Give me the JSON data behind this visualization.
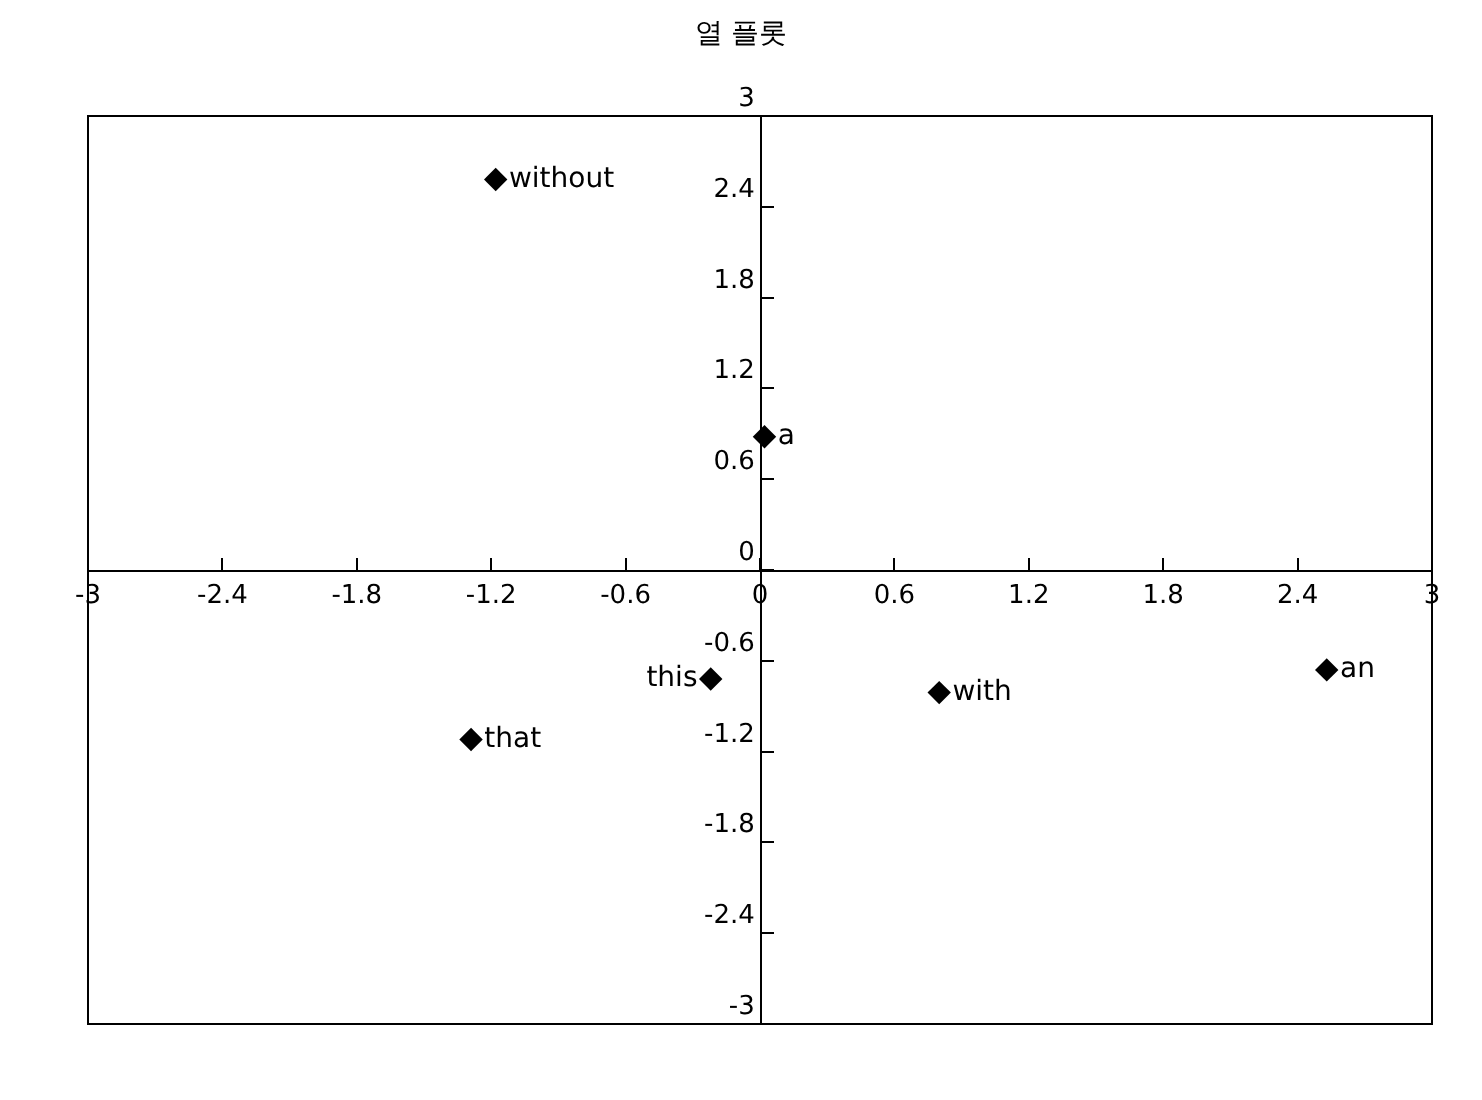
{
  "chart_data": {
    "type": "scatter",
    "title": "열 플롯",
    "x": [
      -1.18,
      0.02,
      -0.22,
      0.8,
      2.53,
      -1.29
    ],
    "values": [
      2.58,
      0.88,
      -0.72,
      -0.81,
      -0.66,
      -1.12
    ],
    "value_labels": [
      "without",
      "a",
      "this",
      "with",
      "an",
      "that"
    ],
    "color": "#000000",
    "marker": "diamond",
    "xlim": [
      -3,
      3
    ],
    "ylim": [
      -3,
      3
    ],
    "xticks": [
      -3,
      -2.4,
      -1.8,
      -1.2,
      -0.6,
      0,
      0.6,
      1.2,
      1.8,
      2.4,
      3
    ],
    "yticks": [
      -3,
      -2.4,
      -1.8,
      -1.2,
      -0.6,
      0,
      0.6,
      1.2,
      1.8,
      2.4,
      3
    ]
  }
}
